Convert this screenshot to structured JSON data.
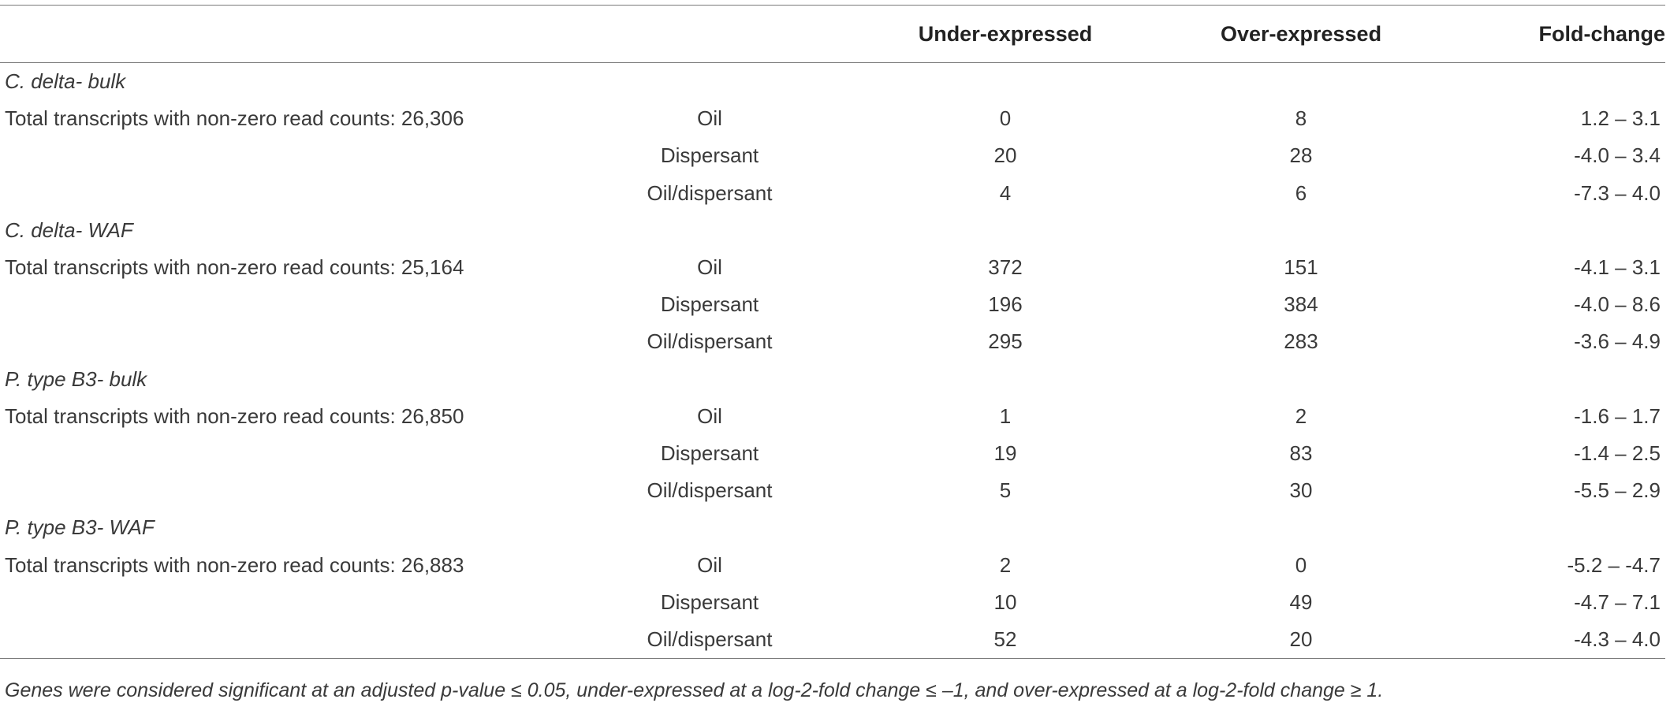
{
  "header": {
    "col_under": "Under-expressed",
    "col_over": "Over-expressed",
    "col_fold": "Fold-change"
  },
  "groups": [
    {
      "name": "C. delta- bulk",
      "total_label": "Total transcripts with non-zero read counts: 26,306",
      "rows": [
        {
          "treatment": "Oil",
          "under": "0",
          "over": "8",
          "fold": "1.2 – 3.1"
        },
        {
          "treatment": "Dispersant",
          "under": "20",
          "over": "28",
          "fold": "-4.0 – 3.4"
        },
        {
          "treatment": "Oil/dispersant",
          "under": "4",
          "over": "6",
          "fold": "-7.3 – 4.0"
        }
      ]
    },
    {
      "name": "C. delta- WAF",
      "total_label": "Total transcripts with non-zero read counts: 25,164",
      "rows": [
        {
          "treatment": "Oil",
          "under": "372",
          "over": "151",
          "fold": "-4.1 – 3.1"
        },
        {
          "treatment": "Dispersant",
          "under": "196",
          "over": "384",
          "fold": "-4.0 – 8.6"
        },
        {
          "treatment": "Oil/dispersant",
          "under": "295",
          "over": "283",
          "fold": "-3.6 – 4.9"
        }
      ]
    },
    {
      "name": "P. type B3- bulk",
      "total_label": "Total transcripts with non-zero read counts: 26,850",
      "rows": [
        {
          "treatment": "Oil",
          "under": "1",
          "over": "2",
          "fold": "-1.6 – 1.7"
        },
        {
          "treatment": "Dispersant",
          "under": "19",
          "over": "83",
          "fold": "-1.4 – 2.5"
        },
        {
          "treatment": "Oil/dispersant",
          "under": "5",
          "over": "30",
          "fold": "-5.5 – 2.9"
        }
      ]
    },
    {
      "name": "P. type B3- WAF",
      "total_label": "Total transcripts with non-zero read counts: 26,883",
      "rows": [
        {
          "treatment": "Oil",
          "under": "2",
          "over": "0",
          "fold": "-5.2 – -4.7"
        },
        {
          "treatment": "Dispersant",
          "under": "10",
          "over": "49",
          "fold": "-4.7 – 7.1"
        },
        {
          "treatment": "Oil/dispersant",
          "under": "52",
          "over": "20",
          "fold": "-4.3 – 4.0"
        }
      ]
    }
  ],
  "footnote": "Genes were considered significant at an adjusted p-value ≤ 0.05, under-expressed at a log-2-fold change ≤ –1, and over-expressed at a log-2-fold change ≥ 1."
}
